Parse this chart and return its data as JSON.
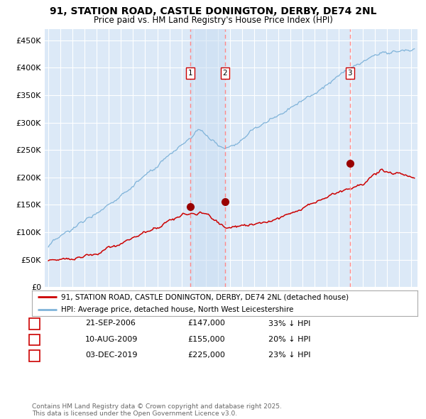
{
  "title": "91, STATION ROAD, CASTLE DONINGTON, DERBY, DE74 2NL",
  "subtitle": "Price paid vs. HM Land Registry's House Price Index (HPI)",
  "background_color": "#ffffff",
  "plot_bg_color": "#dce9f7",
  "grid_color": "#ffffff",
  "ylim": [
    0,
    470000
  ],
  "yticks": [
    0,
    50000,
    100000,
    150000,
    200000,
    250000,
    300000,
    350000,
    400000,
    450000
  ],
  "ytick_labels": [
    "£0",
    "£50K",
    "£100K",
    "£150K",
    "£200K",
    "£250K",
    "£300K",
    "£350K",
    "£400K",
    "£450K"
  ],
  "xlim_start": 1994.7,
  "xlim_end": 2025.5,
  "sale_dates": [
    2006.72,
    2009.6,
    2019.92
  ],
  "sale_prices": [
    147000,
    155000,
    225000
  ],
  "sale_labels": [
    "1",
    "2",
    "3"
  ],
  "red_line_color": "#cc0000",
  "blue_line_color": "#7fb3d9",
  "vline_color": "#ff8888",
  "shade_color": "#c8ddf2",
  "marker_color": "#990000",
  "legend_label_red": "91, STATION ROAD, CASTLE DONINGTON, DERBY, DE74 2NL (detached house)",
  "legend_label_blue": "HPI: Average price, detached house, North West Leicestershire",
  "table_rows": [
    [
      "1",
      "21-SEP-2006",
      "£147,000",
      "33% ↓ HPI"
    ],
    [
      "2",
      "10-AUG-2009",
      "£155,000",
      "20% ↓ HPI"
    ],
    [
      "3",
      "03-DEC-2019",
      "£225,000",
      "23% ↓ HPI"
    ]
  ],
  "footer_text": "Contains HM Land Registry data © Crown copyright and database right 2025.\nThis data is licensed under the Open Government Licence v3.0."
}
